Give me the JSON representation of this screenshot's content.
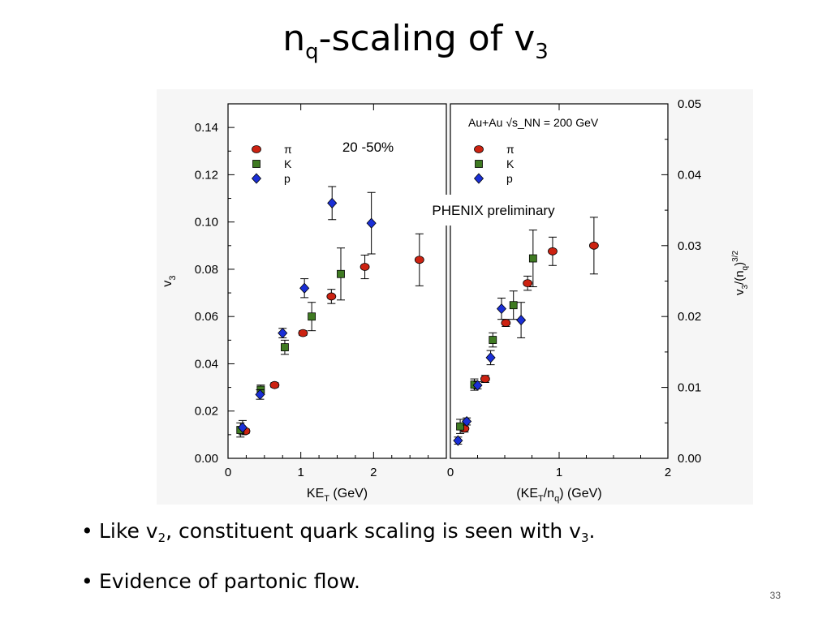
{
  "slide": {
    "title": {
      "main": "n",
      "sub1": "q",
      "mid": "-scaling of v",
      "sub2": "3"
    },
    "bullets": [
      {
        "pre": "Like v",
        "sub1": "2",
        "mid": ", constituent quark scaling is seen with v",
        "sub2": "3",
        "post": "."
      },
      {
        "pre": "Evidence of partonic flow.",
        "sub1": "",
        "mid": "",
        "sub2": "",
        "post": ""
      }
    ],
    "bullet_symbol": "•",
    "page_number": "33"
  },
  "chart_data": [
    {
      "type": "scatter",
      "panel": "left",
      "xlabel": "KE_T (GeV)",
      "ylabel": "v_3",
      "xlim": [
        0,
        3
      ],
      "ylim": [
        0,
        0.15
      ],
      "xticks": [
        "0",
        "1",
        "2"
      ],
      "yticks": [
        "0.00",
        "0.02",
        "0.04",
        "0.06",
        "0.08",
        "0.10",
        "0.12",
        "0.14"
      ],
      "annotation": "20 -50%",
      "legend": [
        "π",
        "K",
        "p"
      ],
      "legend_position": "top-left",
      "series": [
        {
          "name": "π",
          "marker": "circle",
          "color": "#cc2211",
          "points": [
            [
              0.24,
              0.0115,
              0.001
            ],
            [
              0.64,
              0.031,
              0.001
            ],
            [
              1.03,
              0.053,
              0.001
            ],
            [
              1.42,
              0.0685,
              0.003
            ],
            [
              1.88,
              0.081,
              0.005
            ],
            [
              2.63,
              0.084,
              0.011
            ]
          ]
        },
        {
          "name": "K",
          "marker": "square",
          "color": "#3f7a22",
          "points": [
            [
              0.17,
              0.012,
              0.003
            ],
            [
              0.45,
              0.029,
              0.002
            ],
            [
              0.78,
              0.047,
              0.003
            ],
            [
              1.15,
              0.06,
              0.006
            ],
            [
              1.55,
              0.078,
              0.011
            ]
          ]
        },
        {
          "name": "p",
          "marker": "diamond",
          "color": "#1a2fd6",
          "points": [
            [
              0.2,
              0.013,
              0.003
            ],
            [
              0.44,
              0.027,
              0.002
            ],
            [
              0.75,
              0.053,
              0.002
            ],
            [
              1.05,
              0.072,
              0.004
            ],
            [
              1.43,
              0.108,
              0.007
            ],
            [
              1.97,
              0.0995,
              0.013
            ]
          ]
        }
      ]
    },
    {
      "type": "scatter",
      "panel": "right",
      "xlabel": "(KE_T/n_q) (GeV)",
      "ylabel": "v_3/(n_q)^{3/2}",
      "xlim": [
        0,
        2
      ],
      "ylim": [
        0,
        0.05
      ],
      "xticks": [
        "0",
        "1",
        "2"
      ],
      "yticks": [
        "0.00",
        "0.01",
        "0.02",
        "0.03",
        "0.04",
        "0.05"
      ],
      "header": "Au+Au √s_NN = 200 GeV",
      "annotation": "PHENIX preliminary",
      "legend": [
        "π",
        "K",
        "p"
      ],
      "legend_position": "top-left",
      "series": [
        {
          "name": "π",
          "marker": "circle",
          "color": "#cc2211",
          "points": [
            [
              0.13,
              0.0042,
              0.0005
            ],
            [
              0.32,
              0.0112,
              0.0005
            ],
            [
              0.51,
              0.0191,
              0.0005
            ],
            [
              0.71,
              0.0247,
              0.001
            ],
            [
              0.94,
              0.0292,
              0.002
            ],
            [
              1.32,
              0.03,
              0.004
            ]
          ]
        },
        {
          "name": "K",
          "marker": "square",
          "color": "#3f7a22",
          "points": [
            [
              0.09,
              0.0045,
              0.001
            ],
            [
              0.22,
              0.0104,
              0.0008
            ],
            [
              0.39,
              0.0167,
              0.001
            ],
            [
              0.58,
              0.0216,
              0.002
            ],
            [
              0.76,
              0.0282,
              0.004
            ]
          ]
        },
        {
          "name": "p",
          "marker": "diamond",
          "color": "#1a2fd6",
          "points": [
            [
              0.07,
              0.0025,
              0.0005
            ],
            [
              0.15,
              0.0052,
              0.0005
            ],
            [
              0.25,
              0.0103,
              0.0005
            ],
            [
              0.37,
              0.0142,
              0.001
            ],
            [
              0.47,
              0.0211,
              0.0015
            ],
            [
              0.65,
              0.0195,
              0.0025
            ]
          ]
        }
      ]
    }
  ]
}
